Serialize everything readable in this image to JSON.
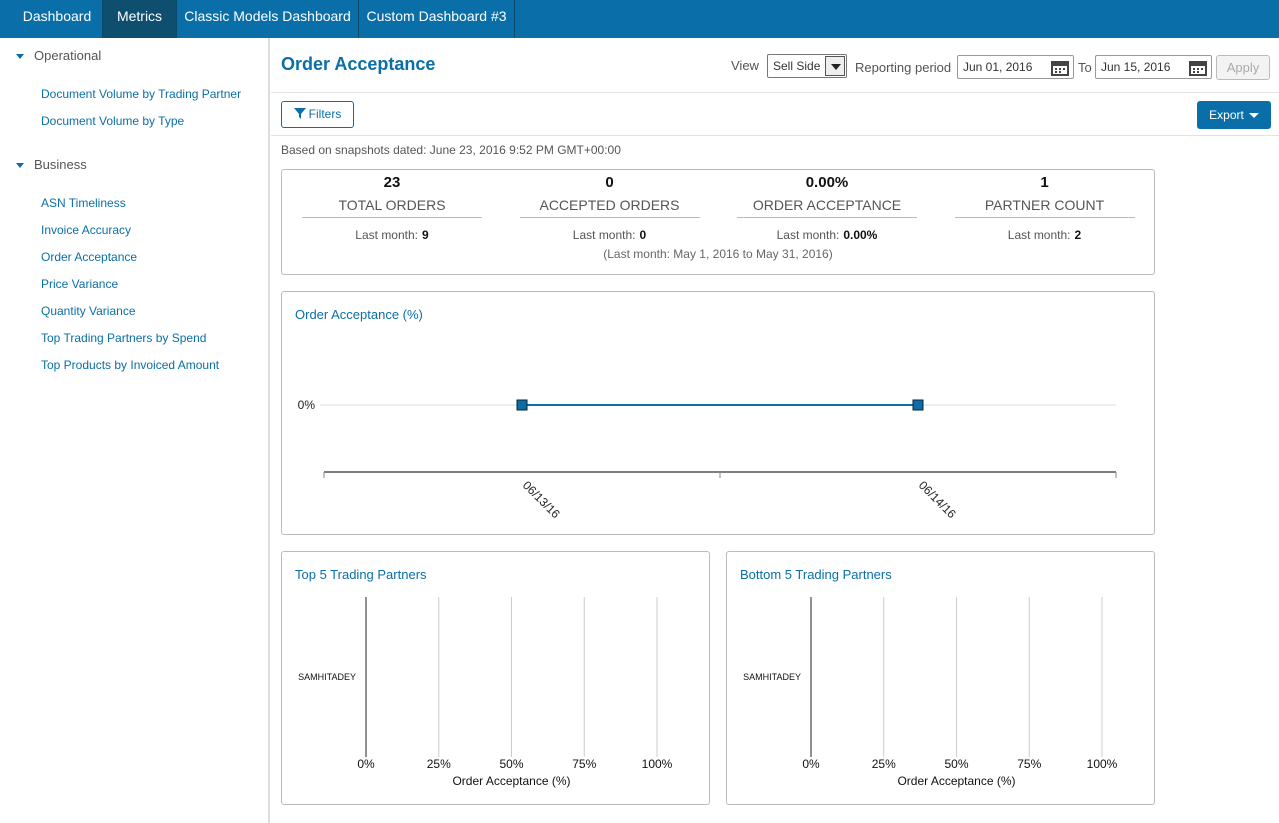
{
  "nav": {
    "tabs": [
      "Dashboard",
      "Metrics",
      "Classic Models Dashboard",
      "Custom Dashboard #3"
    ]
  },
  "sidebar": {
    "sections": [
      {
        "title": "Operational",
        "items": [
          "Document Volume by Trading Partner",
          "Document Volume by Type"
        ]
      },
      {
        "title": "Business",
        "items": [
          "ASN Timeliness",
          "Invoice Accuracy",
          "Order Acceptance",
          "Price Variance",
          "Quantity Variance",
          "Top Trading Partners by Spend",
          "Top Products by Invoiced Amount"
        ]
      }
    ]
  },
  "header": {
    "title": "Order Acceptance",
    "view_label": "View",
    "view_value": "Sell Side",
    "period_label": "Reporting period",
    "from": "Jun 01, 2016",
    "to_label": "To",
    "to": "Jun 15, 2016",
    "apply": "Apply"
  },
  "toolbar": {
    "filters": "Filters",
    "export": "Export"
  },
  "snapshot": "Based on snapshots dated: June 23, 2016 9:52 PM GMT+00:00",
  "kpis": {
    "items": [
      {
        "value": "23",
        "label": "TOTAL ORDERS",
        "last_label": "Last month:",
        "last": "9"
      },
      {
        "value": "0",
        "label": "ACCEPTED ORDERS",
        "last_label": "Last month:",
        "last": "0"
      },
      {
        "value": "0.00%",
        "label": "ORDER ACCEPTANCE",
        "last_label": "Last month:",
        "last": "0.00%"
      },
      {
        "value": "1",
        "label": "PARTNER COUNT",
        "last_label": "Last month:",
        "last": "2"
      }
    ],
    "note": "(Last month: May 1, 2016 to May 31, 2016)"
  },
  "chart_data": [
    {
      "type": "line",
      "title": "Order Acceptance (%)",
      "categories": [
        "06/13/16",
        "06/14/16"
      ],
      "values": [
        0,
        0
      ],
      "color": "#0a6fa8",
      "ylim": [
        -1,
        1
      ],
      "yticks": [
        {
          "value": 0,
          "label": "0%"
        }
      ],
      "grid": true
    },
    {
      "type": "hbar",
      "title": "Top 5 Trading Partners",
      "categories": [
        "SAMHITADEY"
      ],
      "values": [
        0
      ],
      "color": "#0a6fa8",
      "xlim": [
        0,
        100
      ],
      "xticks": [
        {
          "value": 0,
          "label": "0%"
        },
        {
          "value": 25,
          "label": "25%"
        },
        {
          "value": 50,
          "label": "50%"
        },
        {
          "value": 75,
          "label": "75%"
        },
        {
          "value": 100,
          "label": "100%"
        }
      ],
      "xlabel": "Order Acceptance (%)",
      "grid": true
    },
    {
      "type": "hbar",
      "title": "Bottom 5 Trading Partners",
      "categories": [
        "SAMHITADEY"
      ],
      "values": [
        0
      ],
      "color": "#0a6fa8",
      "xlim": [
        0,
        100
      ],
      "xticks": [
        {
          "value": 0,
          "label": "0%"
        },
        {
          "value": 25,
          "label": "25%"
        },
        {
          "value": 50,
          "label": "50%"
        },
        {
          "value": 75,
          "label": "75%"
        },
        {
          "value": 100,
          "label": "100%"
        }
      ],
      "xlabel": "Order Acceptance (%)",
      "grid": true
    }
  ]
}
